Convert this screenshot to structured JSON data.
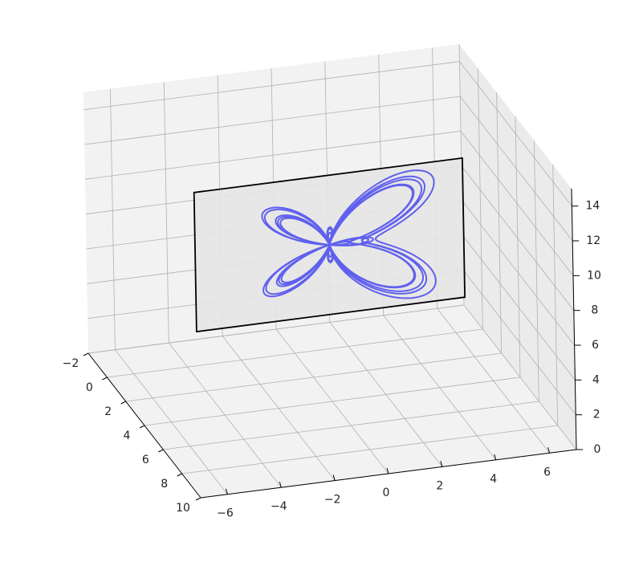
{
  "chart_data": {
    "type": "line",
    "projection": "3d",
    "title": "",
    "xlabel": "",
    "ylabel": "",
    "zlabel": "",
    "x_ticks": [
      -2,
      0,
      2,
      4,
      6,
      8,
      10
    ],
    "y_ticks": [
      -6,
      -4,
      -2,
      0,
      2,
      4,
      6
    ],
    "z_ticks": [
      0,
      2,
      4,
      6,
      8,
      10,
      12,
      14
    ],
    "xlim": [
      -2,
      10
    ],
    "ylim": [
      -7,
      7
    ],
    "zlim": [
      0,
      15
    ],
    "grid": true,
    "panes": "light-gray",
    "plane": {
      "x": 4,
      "corners": [
        [
          4,
          -5,
          5
        ],
        [
          4,
          5,
          5
        ],
        [
          4,
          5,
          13
        ],
        [
          4,
          -5,
          13
        ]
      ],
      "fill": "#e6e6e6",
      "edge": "#000000"
    },
    "curve": {
      "kind": "butterfly",
      "x": 4,
      "center": [
        0,
        9
      ],
      "scale": 1.0,
      "color": "#6060ee"
    }
  }
}
